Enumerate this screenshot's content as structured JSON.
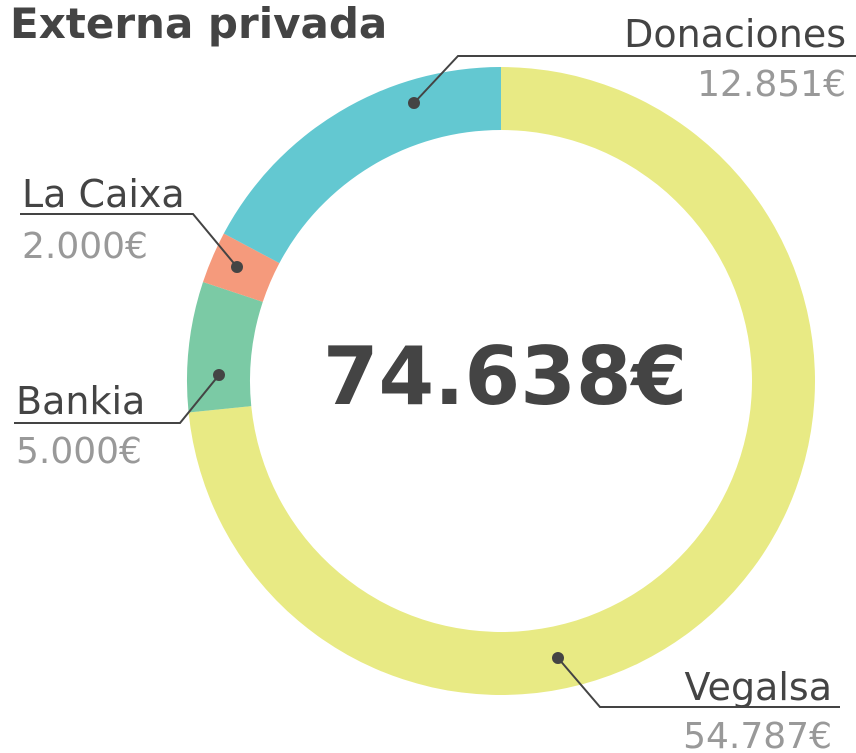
{
  "chart_data": {
    "type": "donut",
    "title": "Externa privada",
    "center_label": "74.638€",
    "categories": [
      "Vegalsa",
      "Bankia",
      "La Caixa",
      "Donaciones"
    ],
    "values": [
      54787,
      5000,
      2000,
      12851
    ],
    "value_labels": [
      "54.787€",
      "5.000€",
      "2.000€",
      "12.851€"
    ],
    "colors": [
      "#e8ea84",
      "#7bcaa5",
      "#f59a7c",
      "#63c8d1"
    ]
  }
}
